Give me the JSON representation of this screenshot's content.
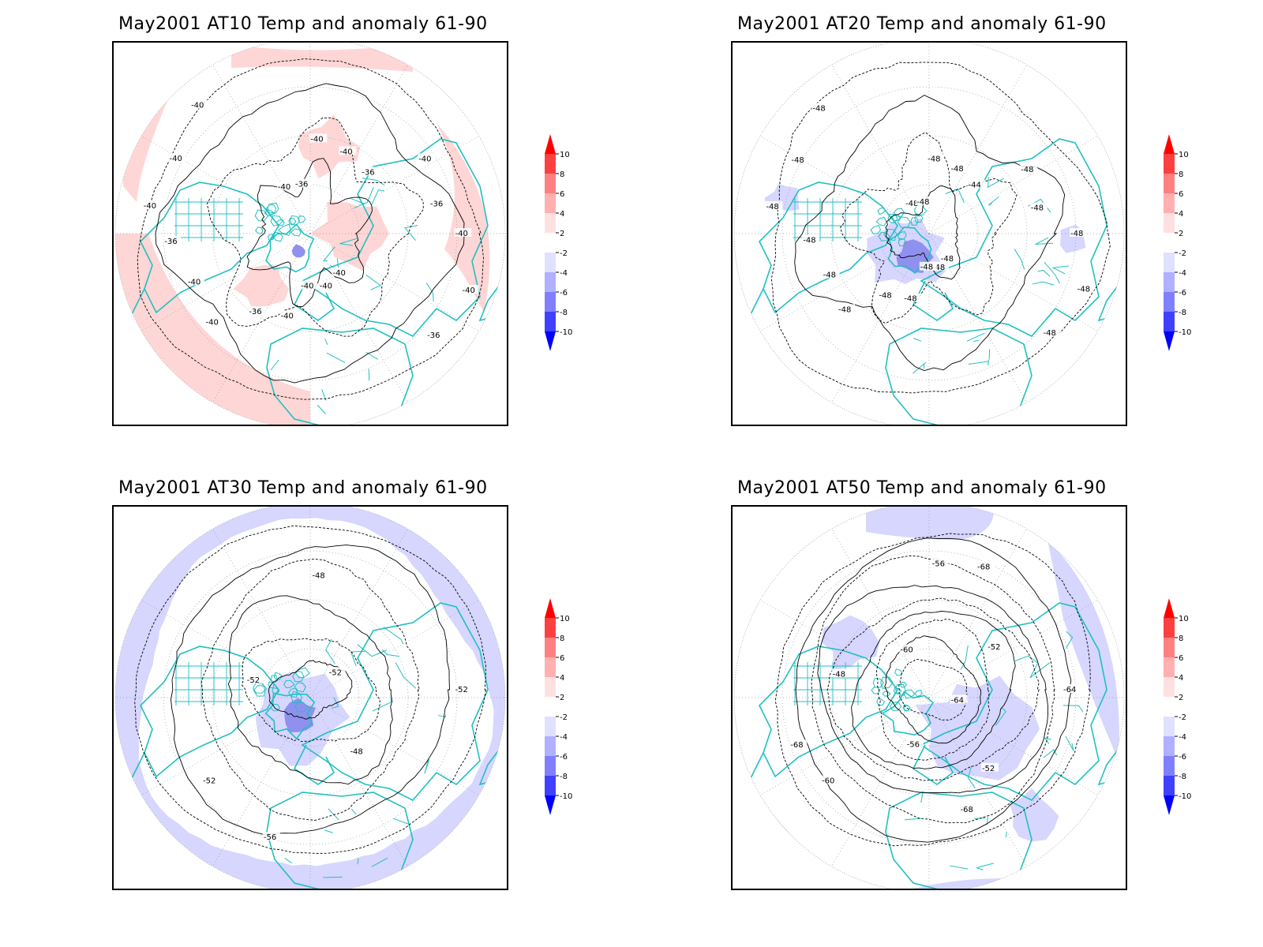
{
  "panels": [
    {
      "title": "May2001 AT10 Temp and anomaly 61-90",
      "anomaly": "warm",
      "contour_labels": [
        "-40",
        "-40",
        "-40",
        "-40",
        "-40",
        "-40",
        "-40",
        "-40",
        "-40",
        "-40",
        "-40",
        "-40",
        "-40",
        "-36",
        "-36",
        "-36",
        "-36",
        "-36",
        "-36",
        "-40",
        "-40"
      ]
    },
    {
      "title": "May2001 AT20 Temp and anomaly 61-90",
      "anomaly": "cold",
      "contour_labels": [
        "-48",
        "-48",
        "-48",
        "-48",
        "-48",
        "-48",
        "-48",
        "-48",
        "-48",
        "-48",
        "-48",
        "-48",
        "-48",
        "-48",
        "-48",
        "-48",
        "-48",
        "-48",
        "-44",
        "-48",
        "-48"
      ]
    },
    {
      "title": "May2001 AT30 Temp and anomaly 61-90",
      "anomaly": "cold",
      "contour_labels": [
        "-52",
        "-52",
        "-48",
        "-48",
        "-52",
        "-52",
        "-56"
      ]
    },
    {
      "title": "May2001 AT50 Temp and anomaly 61-90",
      "anomaly": "cold",
      "contour_labels": [
        "-64",
        "-60",
        "-56",
        "-52",
        "-48",
        "-52",
        "-56",
        "-60",
        "-64",
        "-68",
        "-68",
        "-68"
      ]
    }
  ],
  "colorbar": {
    "labels": [
      "10",
      "8",
      "6",
      "4",
      "2",
      "-2",
      "-4",
      "-6",
      "-8",
      "-10"
    ],
    "colors": [
      "#ff0000",
      "#ff4040",
      "#ff8080",
      "#ffb0b0",
      "#ffe0e0",
      "#ffffff",
      "#e0e0ff",
      "#b0b0ff",
      "#8080ff",
      "#4040ff",
      "#0000ff"
    ]
  },
  "styles": {
    "coast_color": "#20c0c0",
    "warm_fill": "#ffd6d6",
    "cold_fill": "#d6d6ff",
    "cold_fill_strong": "#9090f0"
  }
}
